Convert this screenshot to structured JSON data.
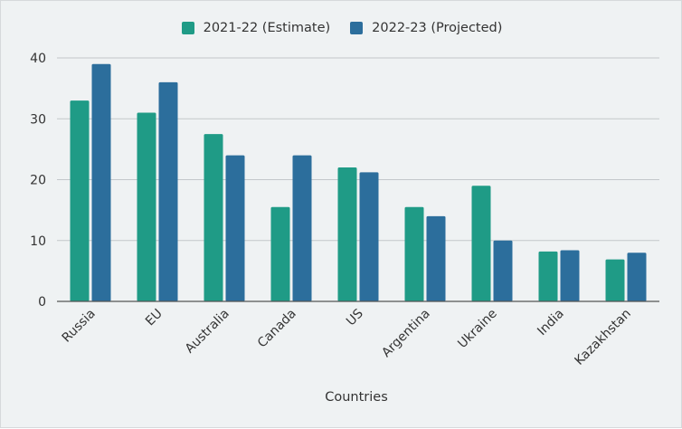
{
  "chart_data": {
    "type": "bar",
    "title": "",
    "xlabel": "Countries",
    "ylabel": "",
    "ylim": [
      0,
      40
    ],
    "yticks": [
      0,
      10,
      20,
      30,
      40
    ],
    "categories": [
      "Russia",
      "EU",
      "Australia",
      "Canada",
      "US",
      "Argentina",
      "Ukraine",
      "India",
      "Kazakhstan"
    ],
    "series": [
      {
        "name": "2021-22 (Estimate)",
        "color": "#1f9b86",
        "values": [
          33,
          31,
          27.5,
          15.5,
          22,
          15.5,
          19,
          8.2,
          6.9
        ]
      },
      {
        "name": "2022-23 (Projected)",
        "color": "#2c6e9c",
        "values": [
          39,
          36,
          24,
          24,
          21.2,
          14,
          10,
          8.4,
          8
        ]
      }
    ],
    "grid": true,
    "legend_position": "top"
  }
}
